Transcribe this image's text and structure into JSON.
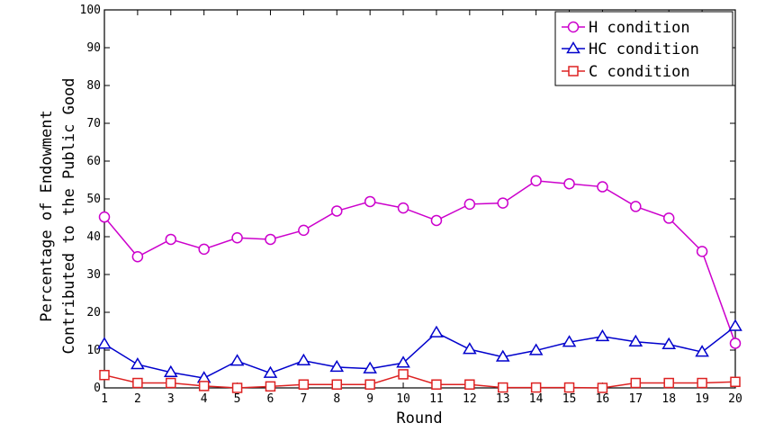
{
  "chart_data": {
    "type": "line",
    "xlabel": "Round",
    "ylabel_lines": [
      "Percentage of Endowment",
      "Contributed to the Public Good"
    ],
    "xlim": [
      1,
      20
    ],
    "ylim": [
      0,
      100
    ],
    "x": [
      1,
      2,
      3,
      4,
      5,
      6,
      7,
      8,
      9,
      10,
      11,
      12,
      13,
      14,
      15,
      16,
      17,
      18,
      19,
      20
    ],
    "x_ticks": [
      1,
      2,
      3,
      4,
      5,
      6,
      7,
      8,
      9,
      10,
      11,
      12,
      13,
      14,
      15,
      16,
      17,
      18,
      19,
      20
    ],
    "y_ticks": [
      0,
      10,
      20,
      30,
      40,
      50,
      60,
      70,
      80,
      90,
      100
    ],
    "grid": false,
    "legend_position": "top-right",
    "series": [
      {
        "name": "H condition",
        "color": "#cc00cc",
        "marker": "circle",
        "values": [
          45.2,
          34.7,
          39.3,
          36.7,
          39.7,
          39.3,
          41.7,
          46.8,
          49.3,
          47.6,
          44.3,
          48.6,
          48.9,
          54.8,
          54.0,
          53.2,
          48.0,
          44.9,
          36.1,
          11.8
        ]
      },
      {
        "name": "HC condition",
        "color": "#0000cc",
        "marker": "triangle",
        "values": [
          11.6,
          6.2,
          4.1,
          2.6,
          7.1,
          3.9,
          7.2,
          5.5,
          5.1,
          6.6,
          14.6,
          10.2,
          8.2,
          9.9,
          12.1,
          13.6,
          12.2,
          11.5,
          9.5,
          16.3
        ]
      },
      {
        "name": "C condition",
        "color": "#dd2222",
        "marker": "square",
        "values": [
          3.4,
          1.3,
          1.3,
          0.5,
          0.0,
          0.4,
          0.9,
          0.9,
          0.9,
          3.6,
          0.9,
          0.9,
          0.1,
          0.1,
          0.1,
          0.0,
          1.3,
          1.3,
          1.3,
          1.6
        ]
      }
    ]
  }
}
